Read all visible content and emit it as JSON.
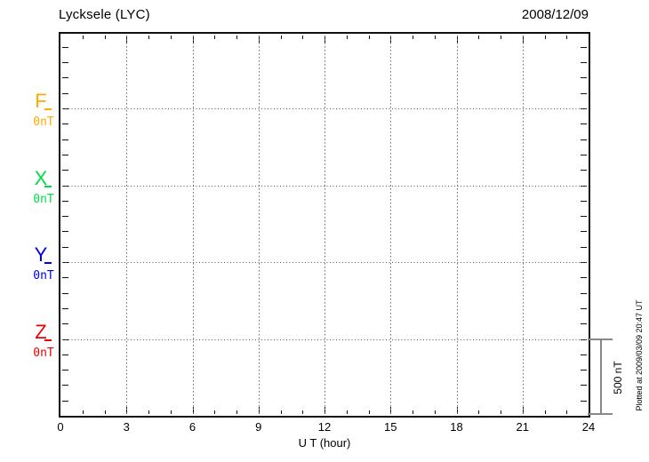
{
  "header": {
    "title": "Lycksele (LYC)",
    "date": "2008/12/09"
  },
  "chart_data": {
    "type": "line",
    "title": "Lycksele (LYC)",
    "date": "2008/12/09",
    "xlabel": "U T (hour)",
    "xlim": [
      0,
      24
    ],
    "x_ticks": [
      0,
      3,
      6,
      9,
      12,
      15,
      18,
      21,
      24
    ],
    "x_minor_step_hours": 1,
    "ylim_nT_above_axis": [
      0,
      2486
    ],
    "y_minor_step_nT": 100,
    "grid": {
      "vertical_at_hours": [
        3,
        6,
        9,
        12,
        15,
        18,
        21
      ],
      "horizontal_at_channel_zeros": true,
      "style": "dotted"
    },
    "channels": [
      {
        "name": "F",
        "offset_label": "0nT",
        "color": "#FFAA00",
        "zero_nT_above_axis": 2000,
        "values": []
      },
      {
        "name": "X",
        "offset_label": "0nT",
        "color": "#00DD44",
        "zero_nT_above_axis": 1500,
        "values": []
      },
      {
        "name": "Y",
        "offset_label": "0nT",
        "color": "#0000DD",
        "zero_nT_above_axis": 1000,
        "values": []
      },
      {
        "name": "Z",
        "offset_label": "0nT",
        "color": "#EE0000",
        "zero_nT_above_axis": 500,
        "values": []
      }
    ],
    "scale_bar": {
      "label": "500 nT",
      "span_nT": 500
    },
    "footer_note": "Plotted at 2009/03/09 20:47 UT",
    "legend": "none",
    "note": "no data traces plotted (empty grid)"
  }
}
